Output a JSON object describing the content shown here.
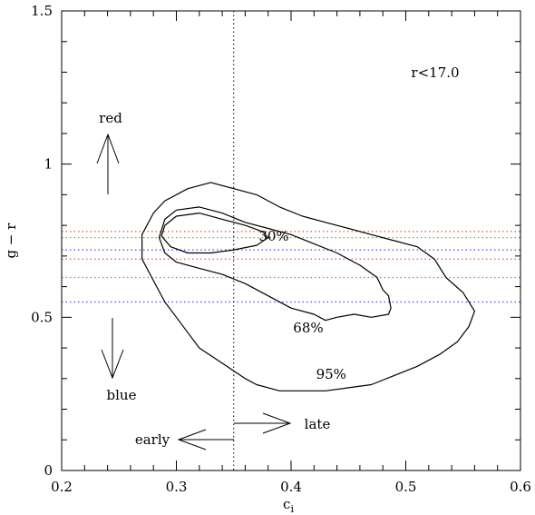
{
  "chart_data": {
    "type": "line",
    "title": "",
    "xlabel": "c",
    "xlabel_subscript": "i",
    "ylabel": "g − r",
    "xlim": [
      0.2,
      0.6
    ],
    "ylim": [
      0,
      1.5
    ],
    "x_ticks": [
      "0.2",
      "0.3",
      "0.4",
      "0.5",
      "0.6"
    ],
    "y_ticks": [
      "0",
      "0.5",
      "1",
      "1.5"
    ],
    "x_tick_values": [
      0.2,
      0.3,
      0.4,
      0.5,
      0.6
    ],
    "y_tick_values": [
      0,
      0.5,
      1,
      1.5
    ],
    "grid": false,
    "legend": "none",
    "contours": [
      {
        "label": "30%",
        "label_pos": [
          0.385,
          0.75
        ],
        "points": [
          [
            0.29,
            0.8
          ],
          [
            0.3,
            0.83
          ],
          [
            0.32,
            0.84
          ],
          [
            0.34,
            0.82
          ],
          [
            0.36,
            0.8
          ],
          [
            0.375,
            0.78
          ],
          [
            0.38,
            0.76
          ],
          [
            0.37,
            0.735
          ],
          [
            0.35,
            0.72
          ],
          [
            0.33,
            0.71
          ],
          [
            0.31,
            0.71
          ],
          [
            0.295,
            0.73
          ],
          [
            0.287,
            0.765
          ],
          [
            0.29,
            0.8
          ]
        ]
      },
      {
        "label": "68%",
        "label_pos": [
          0.415,
          0.45
        ],
        "points": [
          [
            0.285,
            0.76
          ],
          [
            0.29,
            0.82
          ],
          [
            0.3,
            0.85
          ],
          [
            0.32,
            0.86
          ],
          [
            0.34,
            0.84
          ],
          [
            0.36,
            0.81
          ],
          [
            0.38,
            0.79
          ],
          [
            0.4,
            0.77
          ],
          [
            0.42,
            0.74
          ],
          [
            0.44,
            0.71
          ],
          [
            0.46,
            0.67
          ],
          [
            0.475,
            0.63
          ],
          [
            0.48,
            0.59
          ],
          [
            0.485,
            0.57
          ],
          [
            0.487,
            0.53
          ],
          [
            0.485,
            0.51
          ],
          [
            0.47,
            0.5
          ],
          [
            0.455,
            0.51
          ],
          [
            0.44,
            0.5
          ],
          [
            0.43,
            0.49
          ],
          [
            0.42,
            0.51
          ],
          [
            0.4,
            0.53
          ],
          [
            0.38,
            0.57
          ],
          [
            0.36,
            0.61
          ],
          [
            0.34,
            0.64
          ],
          [
            0.32,
            0.66
          ],
          [
            0.3,
            0.68
          ],
          [
            0.29,
            0.71
          ],
          [
            0.285,
            0.76
          ]
        ]
      },
      {
        "label": "95%",
        "label_pos": [
          0.435,
          0.3
        ],
        "points": [
          [
            0.27,
            0.77
          ],
          [
            0.28,
            0.84
          ],
          [
            0.29,
            0.88
          ],
          [
            0.31,
            0.92
          ],
          [
            0.33,
            0.94
          ],
          [
            0.35,
            0.92
          ],
          [
            0.37,
            0.9
          ],
          [
            0.39,
            0.86
          ],
          [
            0.41,
            0.83
          ],
          [
            0.43,
            0.81
          ],
          [
            0.45,
            0.79
          ],
          [
            0.47,
            0.77
          ],
          [
            0.49,
            0.75
          ],
          [
            0.51,
            0.73
          ],
          [
            0.525,
            0.69
          ],
          [
            0.535,
            0.63
          ],
          [
            0.55,
            0.58
          ],
          [
            0.56,
            0.52
          ],
          [
            0.555,
            0.47
          ],
          [
            0.545,
            0.42
          ],
          [
            0.53,
            0.38
          ],
          [
            0.51,
            0.34
          ],
          [
            0.49,
            0.31
          ],
          [
            0.47,
            0.28
          ],
          [
            0.45,
            0.27
          ],
          [
            0.43,
            0.26
          ],
          [
            0.41,
            0.26
          ],
          [
            0.39,
            0.26
          ],
          [
            0.37,
            0.28
          ],
          [
            0.36,
            0.3
          ],
          [
            0.34,
            0.35
          ],
          [
            0.32,
            0.4
          ],
          [
            0.31,
            0.45
          ],
          [
            0.3,
            0.5
          ],
          [
            0.29,
            0.55
          ],
          [
            0.28,
            0.62
          ],
          [
            0.27,
            0.69
          ],
          [
            0.27,
            0.77
          ]
        ]
      }
    ],
    "hlines": [
      {
        "y": 0.78,
        "color": "#e8503a"
      },
      {
        "y": 0.76,
        "color": "#3fc83f"
      },
      {
        "y": 0.72,
        "color": "#4a4ae8"
      },
      {
        "y": 0.69,
        "color": "#e8503a"
      },
      {
        "y": 0.63,
        "color": "#3fc83f"
      },
      {
        "y": 0.55,
        "color": "#4a4ae8"
      }
    ],
    "vline": {
      "x": 0.35,
      "color": "#000000"
    },
    "annotations": {
      "magnitude_cut": "r<17.0",
      "red": "red",
      "blue": "blue",
      "early": "early",
      "late": "late"
    }
  }
}
